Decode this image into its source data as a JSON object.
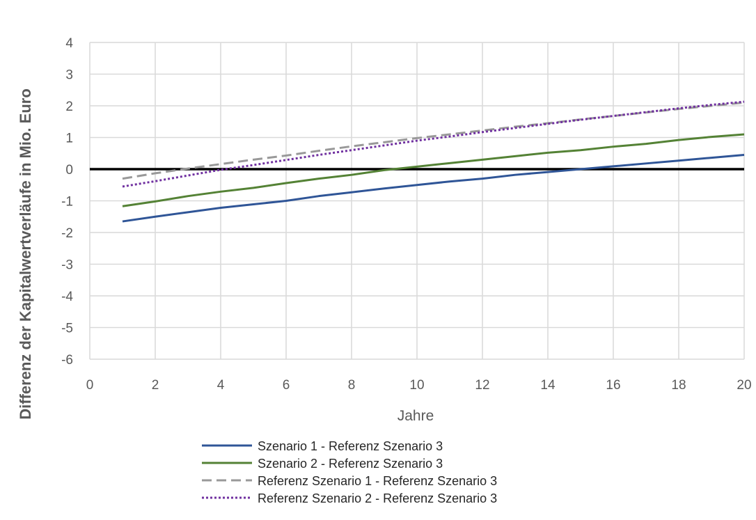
{
  "chart_data": {
    "type": "line",
    "xlabel": "Jahre",
    "ylabel": "Differenz der Kapitalwertverläufe in Mio. Euro",
    "xlim": [
      0,
      20
    ],
    "ylim": [
      -6,
      4
    ],
    "x_ticks": [
      "0",
      "2",
      "4",
      "6",
      "8",
      "10",
      "12",
      "14",
      "16",
      "18",
      "20"
    ],
    "y_ticks": [
      "4",
      "3",
      "2",
      "1",
      "0",
      "-1",
      "-2",
      "-3",
      "-4",
      "-5",
      "-6"
    ],
    "grid": true,
    "zero_line_color": "#000000",
    "legend_position": "bottom",
    "x": [
      1,
      2,
      3,
      4,
      5,
      6,
      7,
      8,
      9,
      10,
      11,
      12,
      13,
      14,
      15,
      16,
      17,
      18,
      19,
      20
    ],
    "series": [
      {
        "name": "Szenario 1 -  Referenz Szenario 3",
        "color": "#2F5597",
        "style": "solid",
        "values": [
          -1.65,
          -1.5,
          -1.36,
          -1.22,
          -1.11,
          -1.0,
          -0.85,
          -0.73,
          -0.61,
          -0.5,
          -0.39,
          -0.3,
          -0.18,
          -0.09,
          0.0,
          0.09,
          0.18,
          0.27,
          0.36,
          0.45
        ]
      },
      {
        "name": "Szenario 2 - Referenz Szenario 3",
        "color": "#548235",
        "style": "solid",
        "values": [
          -1.17,
          -1.02,
          -0.85,
          -0.71,
          -0.59,
          -0.44,
          -0.3,
          -0.18,
          -0.03,
          0.08,
          0.19,
          0.3,
          0.41,
          0.52,
          0.6,
          0.71,
          0.8,
          0.92,
          1.02,
          1.1
        ]
      },
      {
        "name": "Referenz Szenario 1 - Referenz Szenario 3",
        "color": "#999999",
        "style": "dashed",
        "values": [
          -0.3,
          -0.13,
          0.02,
          0.16,
          0.3,
          0.43,
          0.58,
          0.72,
          0.85,
          0.98,
          1.1,
          1.22,
          1.34,
          1.45,
          1.57,
          1.68,
          1.79,
          1.9,
          2.0,
          2.1
        ]
      },
      {
        "name": "Referenz Szenario 2 - Referenz Szenario 3",
        "color": "#7030A0",
        "style": "dotted",
        "values": [
          -0.55,
          -0.38,
          -0.2,
          -0.02,
          0.13,
          0.29,
          0.45,
          0.6,
          0.75,
          0.9,
          1.03,
          1.17,
          1.3,
          1.43,
          1.56,
          1.68,
          1.8,
          1.92,
          2.03,
          2.13
        ]
      }
    ]
  }
}
